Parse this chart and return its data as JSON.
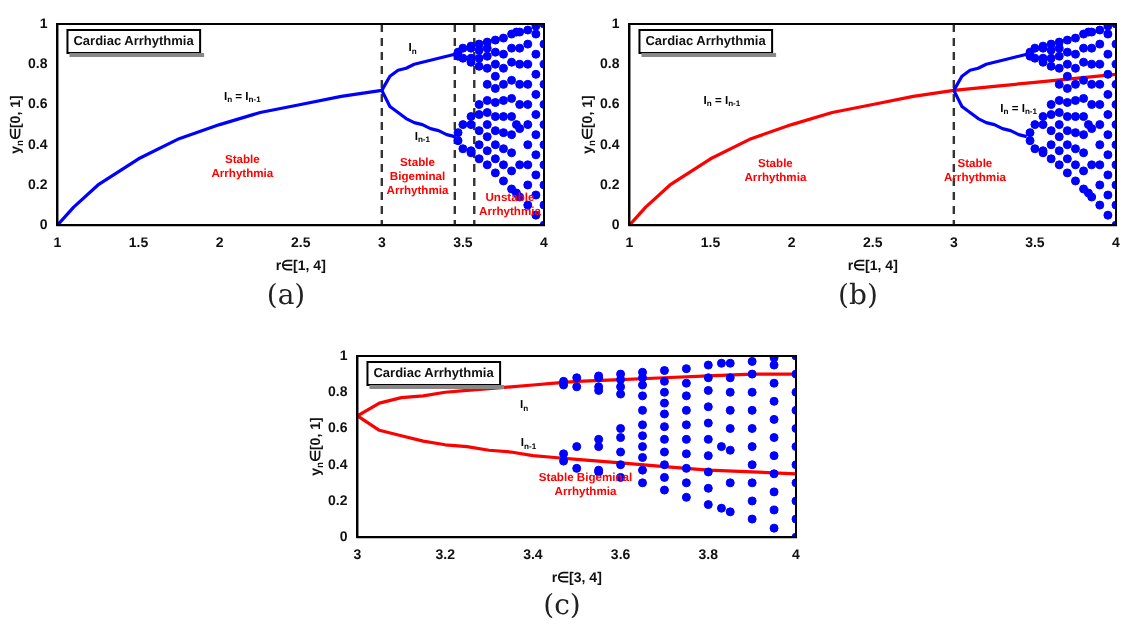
{
  "chart_data": [
    {
      "type": "line",
      "title": "Cardiac Arrhythmia",
      "subtitle": "(a)",
      "xlabel": "r∈[1, 4]",
      "ylabel": "y$_{n}$∈[0, 1]",
      "xlim": [
        1,
        4
      ],
      "ylim": [
        0,
        1
      ],
      "xticks": [
        1,
        1.5,
        2,
        2.5,
        3,
        3.5,
        4
      ],
      "yticks": [
        0,
        0.2,
        0.4,
        0.6,
        0.8,
        1
      ],
      "grid": false,
      "legend": false,
      "series": [
        {
          "color": "#0000ff",
          "x": [
            1,
            1.1,
            1.25,
            1.5,
            1.75,
            2,
            2.25,
            2.5,
            2.75,
            3
          ],
          "values": [
            0,
            0.09,
            0.2,
            0.33,
            0.43,
            0.5,
            0.56,
            0.6,
            0.64,
            0.67
          ]
        },
        {
          "color": "#0000ff",
          "x": [
            3,
            3.05,
            3.1,
            3.15,
            3.2,
            3.25,
            3.3,
            3.35,
            3.4,
            3.45
          ],
          "values": [
            0.67,
            0.74,
            0.77,
            0.78,
            0.8,
            0.81,
            0.82,
            0.83,
            0.84,
            0.85
          ]
        },
        {
          "color": "#0000ff",
          "x": [
            3,
            3.05,
            3.1,
            3.15,
            3.2,
            3.25,
            3.3,
            3.35,
            3.4,
            3.45
          ],
          "values": [
            0.67,
            0.59,
            0.56,
            0.53,
            0.51,
            0.5,
            0.48,
            0.47,
            0.45,
            0.44
          ]
        },
        {
          "type": "scatter",
          "marker": "circle",
          "color": "#0000ff",
          "x": [
            3.47,
            3.47,
            3.47,
            3.47,
            3.5,
            3.5,
            3.5,
            3.5,
            3.55,
            3.55,
            3.55,
            3.55,
            3.55,
            3.55,
            3.55,
            3.55,
            3.6,
            3.6,
            3.6,
            3.6,
            3.6,
            3.6,
            3.6,
            3.6,
            3.6,
            3.65,
            3.65,
            3.65,
            3.65,
            3.65,
            3.65,
            3.65,
            3.65,
            3.65,
            3.65,
            3.65,
            3.7,
            3.7,
            3.7,
            3.7,
            3.7,
            3.7,
            3.7,
            3.7,
            3.7,
            3.7,
            3.7,
            3.75,
            3.75,
            3.75,
            3.75,
            3.75,
            3.75,
            3.75,
            3.75,
            3.75,
            3.75,
            3.8,
            3.8,
            3.8,
            3.8,
            3.8,
            3.8,
            3.8,
            3.8,
            3.8,
            3.8,
            3.83,
            3.83,
            3.83,
            3.85,
            3.85,
            3.85,
            3.85,
            3.85,
            3.85,
            3.85,
            3.85,
            3.9,
            3.9,
            3.9,
            3.9,
            3.9,
            3.9,
            3.9,
            3.9,
            3.9,
            3.9,
            3.95,
            3.95,
            3.95,
            3.95,
            3.95,
            3.95,
            3.95,
            3.95,
            3.95,
            3.95,
            3.95,
            4,
            4,
            4,
            4,
            4,
            4,
            4,
            4,
            4,
            4,
            4
          ],
          "values": [
            0.42,
            0.46,
            0.84,
            0.86,
            0.38,
            0.5,
            0.83,
            0.88,
            0.36,
            0.37,
            0.5,
            0.54,
            0.81,
            0.83,
            0.88,
            0.89,
            0.33,
            0.4,
            0.47,
            0.55,
            0.6,
            0.79,
            0.83,
            0.87,
            0.9,
            0.3,
            0.37,
            0.44,
            0.5,
            0.56,
            0.62,
            0.7,
            0.78,
            0.84,
            0.88,
            0.91,
            0.26,
            0.33,
            0.4,
            0.47,
            0.54,
            0.61,
            0.68,
            0.74,
            0.8,
            0.86,
            0.92,
            0.22,
            0.3,
            0.38,
            0.46,
            0.54,
            0.62,
            0.7,
            0.78,
            0.85,
            0.93,
            0.18,
            0.27,
            0.36,
            0.45,
            0.54,
            0.63,
            0.72,
            0.81,
            0.88,
            0.95,
            0.16,
            0.5,
            0.96,
            0.14,
            0.3,
            0.48,
            0.6,
            0.7,
            0.8,
            0.88,
            0.96,
            0.1,
            0.2,
            0.3,
            0.4,
            0.5,
            0.6,
            0.7,
            0.8,
            0.9,
            0.97,
            0.05,
            0.15,
            0.25,
            0.35,
            0.45,
            0.55,
            0.65,
            0.75,
            0.85,
            0.95,
            0.99,
            0,
            0.1,
            0.2,
            0.3,
            0.4,
            0.5,
            0.6,
            0.7,
            0.8,
            0.9,
            1
          ]
        }
      ],
      "ref_lines": [
        {
          "axis": "x",
          "value": 3,
          "color": "#333333",
          "line_style": "dashed"
        },
        {
          "axis": "x",
          "value": 3.45,
          "color": "#333333",
          "line_style": "dashed"
        },
        {
          "axis": "x",
          "value": 3.57,
          "color": "#333333",
          "line_style": "dashed"
        }
      ],
      "annotations": [
        "I$_{n}$ = I$_{n-1}$",
        "I$_{n}$",
        "I$_{n-1}$",
        "Stable\nArrhythmia",
        "Stable\nBigeminal\nArrhythmia",
        "Unstable\nArrhythmia"
      ]
    },
    {
      "type": "line",
      "title": "Cardiac Arrhythmia",
      "subtitle": "(b)",
      "xlabel": "r∈[1, 4]",
      "ylabel": "y$_{n}$∈[0, 1]",
      "xlim": [
        1,
        4
      ],
      "ylim": [
        0,
        1
      ],
      "xticks": [
        1,
        1.5,
        2,
        2.5,
        3,
        3.5,
        4
      ],
      "yticks": [
        0,
        0.2,
        0.4,
        0.6,
        0.8,
        1
      ],
      "grid": false,
      "legend": false,
      "series": [
        {
          "color": "#0000ff",
          "x": [
            3,
            3.05,
            3.1,
            3.15,
            3.2,
            3.25,
            3.3,
            3.35,
            3.4,
            3.45
          ],
          "values": [
            0.67,
            0.74,
            0.77,
            0.78,
            0.8,
            0.81,
            0.82,
            0.83,
            0.84,
            0.85
          ]
        },
        {
          "color": "#0000ff",
          "x": [
            3,
            3.05,
            3.1,
            3.15,
            3.2,
            3.25,
            3.3,
            3.35,
            3.4,
            3.45
          ],
          "values": [
            0.67,
            0.59,
            0.56,
            0.53,
            0.51,
            0.5,
            0.48,
            0.47,
            0.45,
            0.44
          ]
        },
        {
          "type": "scatter",
          "marker": "circle",
          "color": "#0000ff",
          "x": [
            3.47,
            3.47,
            3.47,
            3.47,
            3.5,
            3.5,
            3.5,
            3.5,
            3.55,
            3.55,
            3.55,
            3.55,
            3.55,
            3.55,
            3.55,
            3.55,
            3.6,
            3.6,
            3.6,
            3.6,
            3.6,
            3.6,
            3.6,
            3.6,
            3.6,
            3.65,
            3.65,
            3.65,
            3.65,
            3.65,
            3.65,
            3.65,
            3.65,
            3.65,
            3.65,
            3.65,
            3.7,
            3.7,
            3.7,
            3.7,
            3.7,
            3.7,
            3.7,
            3.7,
            3.7,
            3.7,
            3.7,
            3.75,
            3.75,
            3.75,
            3.75,
            3.75,
            3.75,
            3.75,
            3.75,
            3.75,
            3.75,
            3.8,
            3.8,
            3.8,
            3.8,
            3.8,
            3.8,
            3.8,
            3.8,
            3.8,
            3.8,
            3.83,
            3.83,
            3.83,
            3.85,
            3.85,
            3.85,
            3.85,
            3.85,
            3.85,
            3.85,
            3.85,
            3.9,
            3.9,
            3.9,
            3.9,
            3.9,
            3.9,
            3.9,
            3.9,
            3.9,
            3.9,
            3.95,
            3.95,
            3.95,
            3.95,
            3.95,
            3.95,
            3.95,
            3.95,
            3.95,
            3.95,
            3.95,
            4,
            4,
            4,
            4,
            4,
            4,
            4,
            4,
            4,
            4,
            4
          ],
          "values": [
            0.42,
            0.46,
            0.84,
            0.86,
            0.38,
            0.5,
            0.83,
            0.88,
            0.36,
            0.37,
            0.5,
            0.54,
            0.81,
            0.83,
            0.88,
            0.89,
            0.33,
            0.4,
            0.47,
            0.55,
            0.6,
            0.79,
            0.83,
            0.87,
            0.9,
            0.3,
            0.37,
            0.44,
            0.5,
            0.56,
            0.62,
            0.7,
            0.78,
            0.84,
            0.88,
            0.91,
            0.26,
            0.33,
            0.4,
            0.47,
            0.54,
            0.61,
            0.68,
            0.74,
            0.8,
            0.86,
            0.92,
            0.22,
            0.3,
            0.38,
            0.46,
            0.54,
            0.62,
            0.7,
            0.78,
            0.85,
            0.93,
            0.18,
            0.27,
            0.36,
            0.45,
            0.54,
            0.63,
            0.72,
            0.81,
            0.88,
            0.95,
            0.16,
            0.5,
            0.96,
            0.14,
            0.3,
            0.48,
            0.6,
            0.7,
            0.8,
            0.88,
            0.96,
            0.1,
            0.2,
            0.3,
            0.4,
            0.5,
            0.6,
            0.7,
            0.8,
            0.9,
            0.97,
            0.05,
            0.15,
            0.25,
            0.35,
            0.45,
            0.55,
            0.65,
            0.75,
            0.85,
            0.95,
            0.99,
            0,
            0.1,
            0.2,
            0.3,
            0.4,
            0.5,
            0.6,
            0.7,
            0.8,
            0.9,
            1
          ]
        },
        {
          "color": "#ff0000",
          "x": [
            1,
            1.1,
            1.25,
            1.5,
            1.75,
            2,
            2.25,
            2.5,
            2.75,
            3,
            3.25,
            3.5,
            3.75,
            4
          ],
          "values": [
            0,
            0.09,
            0.2,
            0.33,
            0.43,
            0.5,
            0.56,
            0.6,
            0.64,
            0.67,
            0.69,
            0.71,
            0.73,
            0.75
          ]
        }
      ],
      "ref_lines": [
        {
          "axis": "x",
          "value": 3,
          "color": "#333333",
          "line_style": "dashed"
        }
      ],
      "annotations": [
        "I$_{n}$ = I$_{n-1}$",
        "I$_{n}$ = I$_{n-1}$",
        "Stable\nArrhythmia",
        "Stable\nArrhythmia"
      ]
    },
    {
      "type": "line",
      "title": "Cardiac Arrhythmia",
      "subtitle": "(c)",
      "xlabel": "r∈[3, 4]",
      "ylabel": "y$_{n}$∈[0, 1]",
      "xlim": [
        3,
        4
      ],
      "ylim": [
        0,
        1
      ],
      "xticks": [
        3,
        3.2,
        3.4,
        3.6,
        3.8,
        4
      ],
      "yticks": [
        0,
        0.2,
        0.4,
        0.6,
        0.8,
        1
      ],
      "grid": false,
      "legend": false,
      "series": [
        {
          "type": "scatter",
          "marker": "circle",
          "color": "#0000ff",
          "x": [
            3.47,
            3.47,
            3.47,
            3.47,
            3.5,
            3.5,
            3.5,
            3.5,
            3.55,
            3.55,
            3.55,
            3.55,
            3.55,
            3.55,
            3.55,
            3.55,
            3.6,
            3.6,
            3.6,
            3.6,
            3.6,
            3.6,
            3.6,
            3.6,
            3.6,
            3.65,
            3.65,
            3.65,
            3.65,
            3.65,
            3.65,
            3.65,
            3.65,
            3.65,
            3.65,
            3.65,
            3.7,
            3.7,
            3.7,
            3.7,
            3.7,
            3.7,
            3.7,
            3.7,
            3.7,
            3.7,
            3.7,
            3.75,
            3.75,
            3.75,
            3.75,
            3.75,
            3.75,
            3.75,
            3.75,
            3.75,
            3.75,
            3.8,
            3.8,
            3.8,
            3.8,
            3.8,
            3.8,
            3.8,
            3.8,
            3.8,
            3.8,
            3.83,
            3.83,
            3.83,
            3.85,
            3.85,
            3.85,
            3.85,
            3.85,
            3.85,
            3.85,
            3.85,
            3.9,
            3.9,
            3.9,
            3.9,
            3.9,
            3.9,
            3.9,
            3.9,
            3.9,
            3.9,
            3.95,
            3.95,
            3.95,
            3.95,
            3.95,
            3.95,
            3.95,
            3.95,
            3.95,
            3.95,
            3.95,
            4,
            4,
            4,
            4,
            4,
            4,
            4,
            4,
            4,
            4,
            4
          ],
          "values": [
            0.42,
            0.46,
            0.84,
            0.86,
            0.38,
            0.5,
            0.83,
            0.88,
            0.36,
            0.37,
            0.5,
            0.54,
            0.81,
            0.83,
            0.88,
            0.89,
            0.33,
            0.4,
            0.47,
            0.55,
            0.6,
            0.79,
            0.83,
            0.87,
            0.9,
            0.3,
            0.37,
            0.44,
            0.5,
            0.56,
            0.62,
            0.7,
            0.78,
            0.84,
            0.88,
            0.91,
            0.26,
            0.33,
            0.4,
            0.47,
            0.54,
            0.61,
            0.68,
            0.74,
            0.8,
            0.86,
            0.92,
            0.22,
            0.3,
            0.38,
            0.46,
            0.54,
            0.62,
            0.7,
            0.78,
            0.85,
            0.93,
            0.18,
            0.27,
            0.36,
            0.45,
            0.54,
            0.63,
            0.72,
            0.81,
            0.88,
            0.95,
            0.16,
            0.5,
            0.96,
            0.14,
            0.3,
            0.48,
            0.6,
            0.7,
            0.8,
            0.88,
            0.96,
            0.1,
            0.2,
            0.3,
            0.4,
            0.5,
            0.6,
            0.7,
            0.8,
            0.9,
            0.97,
            0.05,
            0.15,
            0.25,
            0.35,
            0.45,
            0.55,
            0.65,
            0.75,
            0.85,
            0.95,
            0.99,
            0,
            0.1,
            0.2,
            0.3,
            0.4,
            0.5,
            0.6,
            0.7,
            0.8,
            0.9,
            1
          ]
        },
        {
          "color": "#ff0000",
          "x": [
            3,
            3.05,
            3.1,
            3.15,
            3.2,
            3.25,
            3.3,
            3.35,
            3.4,
            3.45,
            3.5,
            3.6,
            3.7,
            3.8,
            3.9,
            4
          ],
          "values": [
            0.67,
            0.74,
            0.77,
            0.78,
            0.8,
            0.81,
            0.82,
            0.83,
            0.84,
            0.85,
            0.86,
            0.87,
            0.88,
            0.89,
            0.9,
            0.9
          ]
        },
        {
          "color": "#ff0000",
          "x": [
            3,
            3.05,
            3.1,
            3.15,
            3.2,
            3.25,
            3.3,
            3.35,
            3.4,
            3.45,
            3.5,
            3.6,
            3.7,
            3.8,
            3.9,
            4
          ],
          "values": [
            0.67,
            0.59,
            0.56,
            0.53,
            0.51,
            0.5,
            0.48,
            0.47,
            0.45,
            0.44,
            0.43,
            0.41,
            0.39,
            0.37,
            0.36,
            0.35
          ]
        }
      ],
      "annotations": [
        "I$_{n}$",
        "I$_{n-1}$",
        "Stable Bigeminal\nArrhythmia"
      ]
    }
  ]
}
